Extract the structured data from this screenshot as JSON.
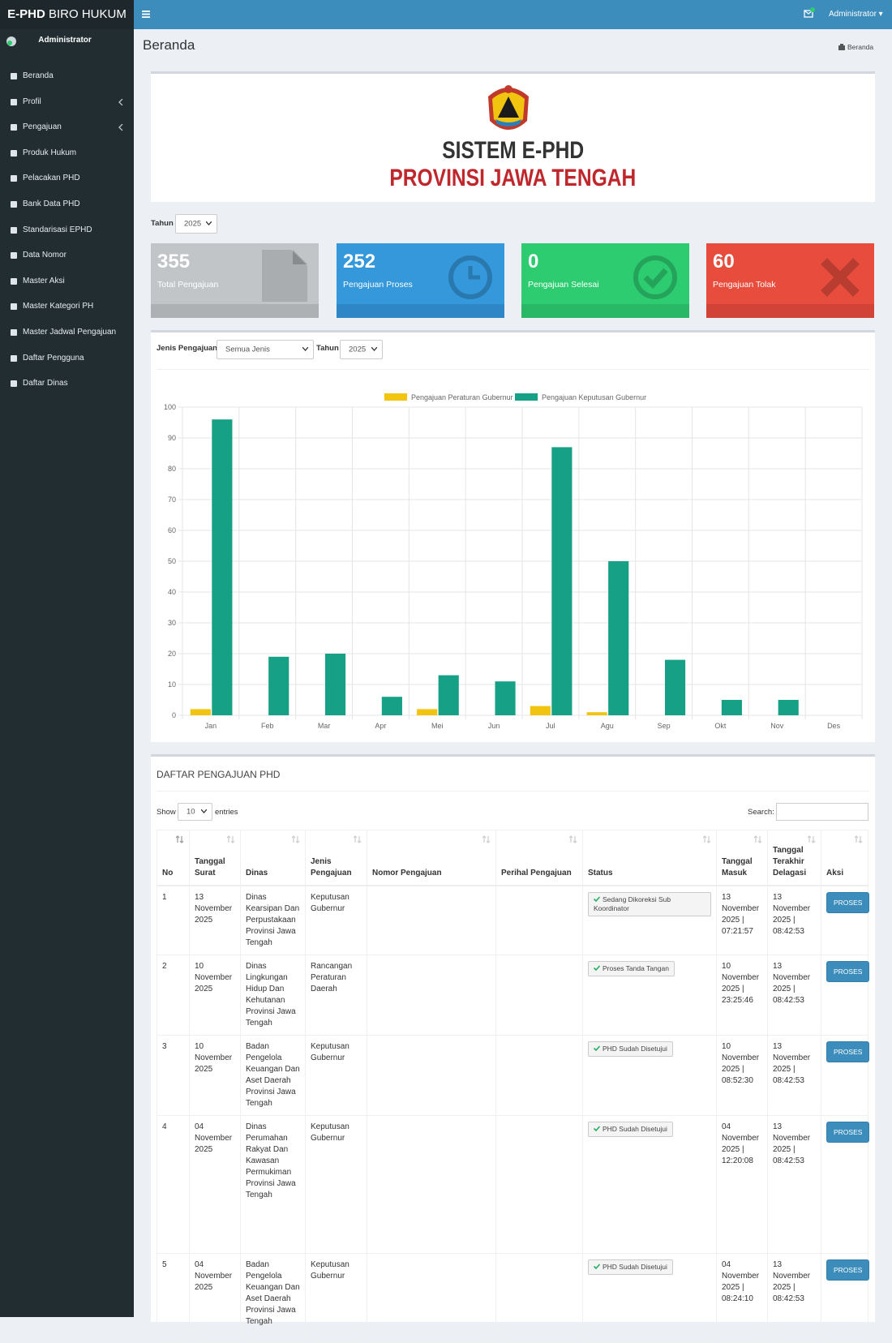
{
  "header": {
    "brand_bold": "E-PHD",
    "brand_rest": "BIRO HUKUM",
    "user": "Administrator"
  },
  "sidebar": {
    "user": "Administrator",
    "menu": [
      "Beranda",
      "Profil",
      "Pengajuan",
      "Produk Hukum",
      "Pelacakan PHD",
      "Bank Data PHD",
      "Standarisasi EPHD",
      "Data Nomor",
      "Master Aksi",
      "Master Kategori PH",
      "Master Jadwal Pengajuan",
      "Daftar Pengguna",
      "Daftar Dinas"
    ]
  },
  "page": {
    "title": "Beranda",
    "breadcrumb": "Beranda"
  },
  "banner": {
    "title": "SISTEM E-PHD",
    "subtitle": "PROVINSI JAWA TENGAH"
  },
  "year_filter": {
    "label": "Tahun",
    "value": "2025"
  },
  "stats": [
    {
      "value": 355,
      "label": "Total Pengajuan"
    },
    {
      "value": 252,
      "label": "Pengajuan Proses"
    },
    {
      "value": 0,
      "label": "Pengajuan Selesai"
    },
    {
      "value": 60,
      "label": "Pengajuan Tolak"
    }
  ],
  "chart_filter": {
    "type_label": "Jenis Pengajuan",
    "type_value": "Semua Jenis",
    "year_label": "Tahun",
    "year_value": "2025"
  },
  "chart_data": {
    "type": "bar",
    "categories": [
      "Jan",
      "Feb",
      "Mar",
      "Apr",
      "Mei",
      "Jun",
      "Jul",
      "Agu",
      "Sep",
      "Okt",
      "Nov",
      "Des"
    ],
    "series": [
      {
        "name": "Pengajuan Peraturan Gubernur",
        "color": "#f1c40f",
        "values": [
          2,
          0,
          0,
          0,
          2,
          0,
          3,
          1,
          0,
          0,
          0,
          0
        ]
      },
      {
        "name": "Pengajuan Keputusan Gubernur",
        "color": "#16a085",
        "values": [
          96,
          19,
          20,
          6,
          13,
          11,
          87,
          50,
          18,
          5,
          5,
          0
        ]
      }
    ],
    "ylim": [
      0,
      100
    ],
    "yticks": [
      0,
      10,
      20,
      30,
      40,
      50,
      60,
      70,
      80,
      90,
      100
    ],
    "grid": true
  },
  "table": {
    "title": "DAFTAR PENGAJUAN PHD",
    "show_label": "Show",
    "page_size": "10",
    "entries_label": "entries",
    "search_label": "Search:",
    "columns": [
      "No",
      "Tanggal Surat",
      "Dinas",
      "Jenis Pengajuan",
      "Nomor Pengajuan",
      "Perihal Pengajuan",
      "Status",
      "Tanggal Masuk",
      "Tanggal Terakhir Delagasi",
      "Aksi"
    ],
    "action_label": "PROSES",
    "rows": [
      {
        "no": "1",
        "date": "13 November 2025",
        "dinas": "Dinas Kearsipan Dan Perpustakaan Provinsi Jawa Tengah",
        "jenis": "Keputusan Gubernur",
        "status": "Sedang Dikoreksi Sub Koordinator",
        "masuk": "13 November 2025 | 07:21:57",
        "delegasi": "13 November 2025 | 08:42:53"
      },
      {
        "no": "2",
        "date": "10 November 2025",
        "dinas": "Dinas Lingkungan Hidup Dan Kehutanan Provinsi Jawa Tengah",
        "jenis": "Rancangan Peraturan Daerah",
        "status": "Proses Tanda Tangan",
        "masuk": "10 November 2025 | 23:25:46",
        "delegasi": "13 November 2025 | 08:42:53"
      },
      {
        "no": "3",
        "date": "10 November 2025",
        "dinas": "Badan Pengelola Keuangan Dan Aset Daerah Provinsi Jawa Tengah",
        "jenis": "Keputusan Gubernur",
        "status": "PHD Sudah Disetujui",
        "masuk": "10 November 2025 | 08:52:30",
        "delegasi": "13 November 2025 | 08:42:53"
      },
      {
        "no": "4",
        "date": "04 November 2025",
        "dinas": "Dinas Perumahan Rakyat Dan Kawasan Permukiman Provinsi Jawa Tengah",
        "jenis": "Keputusan Gubernur",
        "status": "PHD Sudah Disetujui",
        "masuk": "04 November 2025 | 12:20:08",
        "delegasi": "13 November 2025 | 08:42:53"
      },
      {
        "no": "5",
        "date": "04 November 2025",
        "dinas": "Badan Pengelola Keuangan Dan Aset Daerah Provinsi Jawa Tengah",
        "jenis": "Keputusan Gubernur",
        "status": "PHD Sudah Disetujui",
        "masuk": "04 November 2025 | 08:24:10",
        "delegasi": "13 November 2025 | 08:42:53"
      }
    ]
  }
}
